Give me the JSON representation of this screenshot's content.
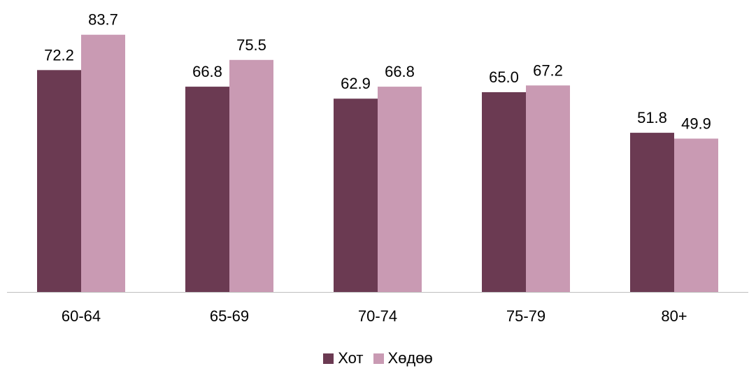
{
  "chart_data": {
    "type": "bar",
    "categories": [
      "60-64",
      "65-69",
      "70-74",
      "75-79",
      "80+"
    ],
    "series": [
      {
        "name": "Хот",
        "values": [
          72.2,
          66.8,
          62.9,
          65.0,
          51.8
        ],
        "color": "#6b3a52"
      },
      {
        "name": "Хөдөө",
        "values": [
          83.7,
          75.5,
          66.8,
          67.2,
          49.9
        ],
        "color": "#c99ab3"
      }
    ],
    "data_labels": [
      [
        "72.2",
        "66.8",
        "62.9",
        "65.0",
        "51.8"
      ],
      [
        "83.7",
        "75.5",
        "66.8",
        "67.2",
        "49.9"
      ]
    ],
    "ylim": [
      0,
      100
    ],
    "grid": false,
    "legend_position": "bottom"
  }
}
